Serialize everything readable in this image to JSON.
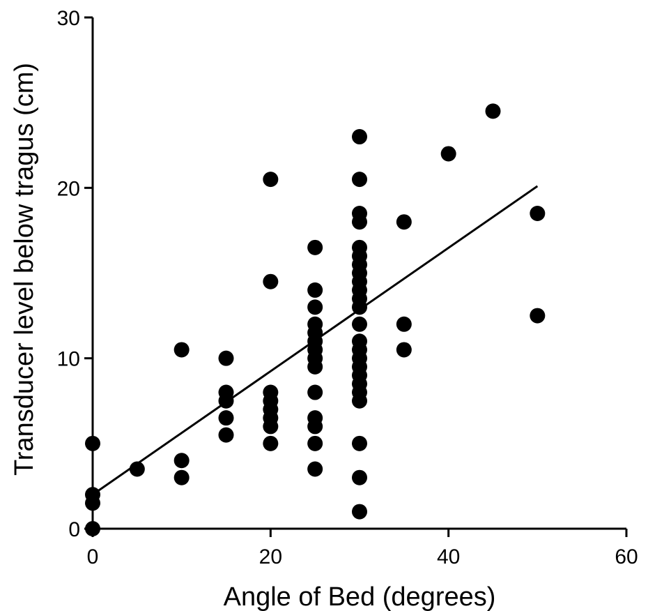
{
  "chart_data": {
    "type": "scatter",
    "title": "",
    "xlabel": "Angle of Bed (degrees)",
    "ylabel": "Transducer level below tragus (cm)",
    "xlim": [
      0,
      60
    ],
    "ylim": [
      0,
      30
    ],
    "x_ticks": [
      0,
      20,
      40,
      60
    ],
    "y_ticks": [
      0,
      10,
      20,
      30
    ],
    "x_tick_labels": [
      "0",
      "20",
      "40",
      "60"
    ],
    "y_tick_labels": [
      "0",
      "10",
      "20",
      "30"
    ],
    "grid": false,
    "marker_color": "#000000",
    "points": [
      {
        "x": 0,
        "y": 5
      },
      {
        "x": 0,
        "y": 2
      },
      {
        "x": 0,
        "y": 1.5
      },
      {
        "x": 0,
        "y": 0
      },
      {
        "x": 5,
        "y": 3.5
      },
      {
        "x": 10,
        "y": 10.5
      },
      {
        "x": 10,
        "y": 4
      },
      {
        "x": 10,
        "y": 3
      },
      {
        "x": 15,
        "y": 10
      },
      {
        "x": 15,
        "y": 8
      },
      {
        "x": 15,
        "y": 7.5
      },
      {
        "x": 15,
        "y": 6.5
      },
      {
        "x": 15,
        "y": 5.5
      },
      {
        "x": 20,
        "y": 20.5
      },
      {
        "x": 20,
        "y": 14.5
      },
      {
        "x": 20,
        "y": 8
      },
      {
        "x": 20,
        "y": 7.5
      },
      {
        "x": 20,
        "y": 7
      },
      {
        "x": 20,
        "y": 6.5
      },
      {
        "x": 20,
        "y": 6
      },
      {
        "x": 20,
        "y": 5
      },
      {
        "x": 25,
        "y": 16.5
      },
      {
        "x": 25,
        "y": 14
      },
      {
        "x": 25,
        "y": 13
      },
      {
        "x": 25,
        "y": 12
      },
      {
        "x": 25,
        "y": 11.5
      },
      {
        "x": 25,
        "y": 11
      },
      {
        "x": 25,
        "y": 10.5
      },
      {
        "x": 25,
        "y": 10
      },
      {
        "x": 25,
        "y": 9.5
      },
      {
        "x": 25,
        "y": 8
      },
      {
        "x": 25,
        "y": 6.5
      },
      {
        "x": 25,
        "y": 6
      },
      {
        "x": 25,
        "y": 5
      },
      {
        "x": 25,
        "y": 3.5
      },
      {
        "x": 30,
        "y": 23
      },
      {
        "x": 30,
        "y": 20.5
      },
      {
        "x": 30,
        "y": 18.5
      },
      {
        "x": 30,
        "y": 18
      },
      {
        "x": 30,
        "y": 16.5
      },
      {
        "x": 30,
        "y": 16
      },
      {
        "x": 30,
        "y": 15.5
      },
      {
        "x": 30,
        "y": 15
      },
      {
        "x": 30,
        "y": 14.5
      },
      {
        "x": 30,
        "y": 14
      },
      {
        "x": 30,
        "y": 13.5
      },
      {
        "x": 30,
        "y": 13
      },
      {
        "x": 30,
        "y": 12
      },
      {
        "x": 30,
        "y": 11
      },
      {
        "x": 30,
        "y": 10.5
      },
      {
        "x": 30,
        "y": 10
      },
      {
        "x": 30,
        "y": 9.5
      },
      {
        "x": 30,
        "y": 9
      },
      {
        "x": 30,
        "y": 8.5
      },
      {
        "x": 30,
        "y": 8
      },
      {
        "x": 30,
        "y": 7.5
      },
      {
        "x": 30,
        "y": 5
      },
      {
        "x": 30,
        "y": 3
      },
      {
        "x": 30,
        "y": 1
      },
      {
        "x": 35,
        "y": 18
      },
      {
        "x": 35,
        "y": 12
      },
      {
        "x": 35,
        "y": 10.5
      },
      {
        "x": 40,
        "y": 22
      },
      {
        "x": 45,
        "y": 24.5
      },
      {
        "x": 50,
        "y": 18.5
      },
      {
        "x": 50,
        "y": 12.5
      }
    ],
    "regression_line": {
      "x": [
        0,
        50
      ],
      "y": [
        2,
        20.1
      ]
    }
  }
}
